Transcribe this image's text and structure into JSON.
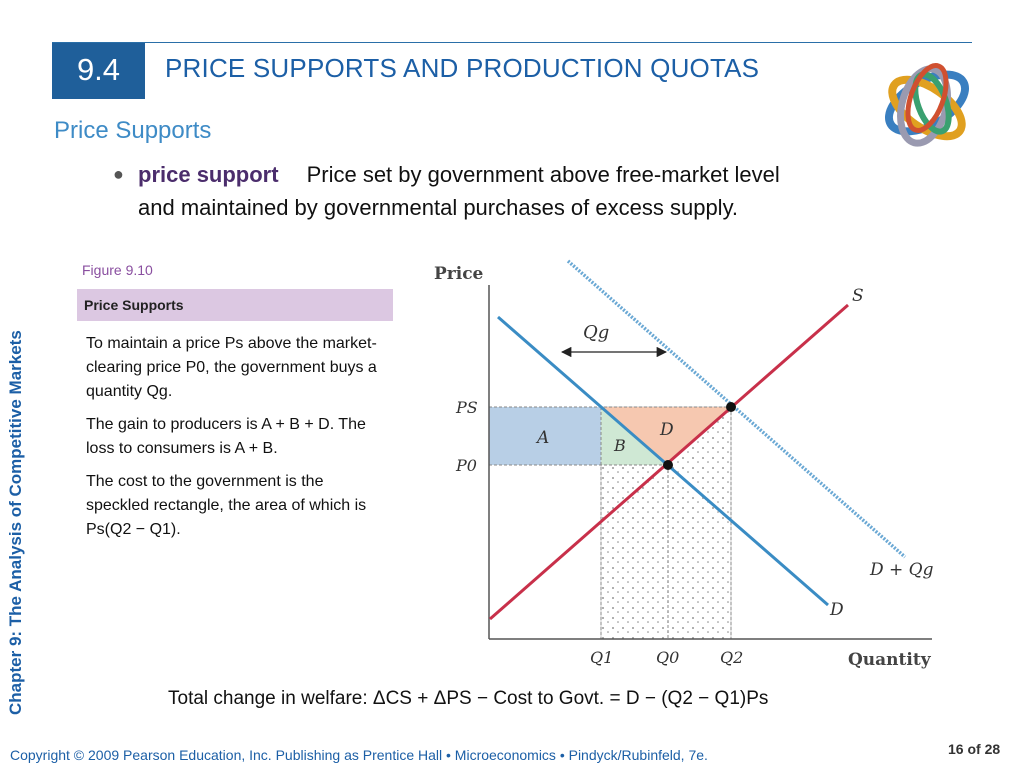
{
  "header": {
    "section_number": "9.4",
    "title": "PRICE SUPPORTS AND PRODUCTION QUOTAS"
  },
  "subtitle": "Price Supports",
  "bullet": {
    "term": "price support",
    "definition": "Price set by government above free-market level and maintained by governmental purchases of excess supply."
  },
  "sidebar": {
    "text": "Chapter 9:  The Analysis of Competitive Markets"
  },
  "figure": {
    "label": "Figure 9.10",
    "title": "Price Supports",
    "caption_1": "To maintain a price Ps above the market-clearing price P0, the government buys a quantity Qg.",
    "caption_2": "The gain to producers is A + B + D.  The loss to consumers is A + B.",
    "caption_3": "The cost to the government is the speckled rectangle, the area of which is Ps(Q2 − Q1)."
  },
  "diagram": {
    "y_axis_label": "Price",
    "x_axis_label": "Quantity",
    "supply_label": "S",
    "demand_label": "D",
    "shifted_demand_label": "D + Qg",
    "qg_label": "Qg",
    "price_labels": {
      "ps": "PS",
      "p0": "P0"
    },
    "quantity_labels": {
      "q1": "Q1",
      "q0": "Q0",
      "q2": "Q2"
    },
    "area_labels": {
      "a": "A",
      "b": "B",
      "d": "D"
    },
    "colors": {
      "supply": "#c8304a",
      "demand": "#3a8cc4",
      "shifted_demand": "#6aa8d4",
      "area_a": "#b8cfe6",
      "area_b": "#cfe8d4",
      "area_d": "#f6c8b0"
    }
  },
  "bottom_formula": "Total change in welfare:  ΔCS + ΔPS − Cost to Govt. = D − (Q2 − Q1)Ps",
  "footer": {
    "copyright": "Copyright © 2009 Pearson Education, Inc. Publishing as Prentice Hall  •  Microeconomics  •  Pindyck/Rubinfeld, 7e.",
    "page": "16 of 28"
  }
}
